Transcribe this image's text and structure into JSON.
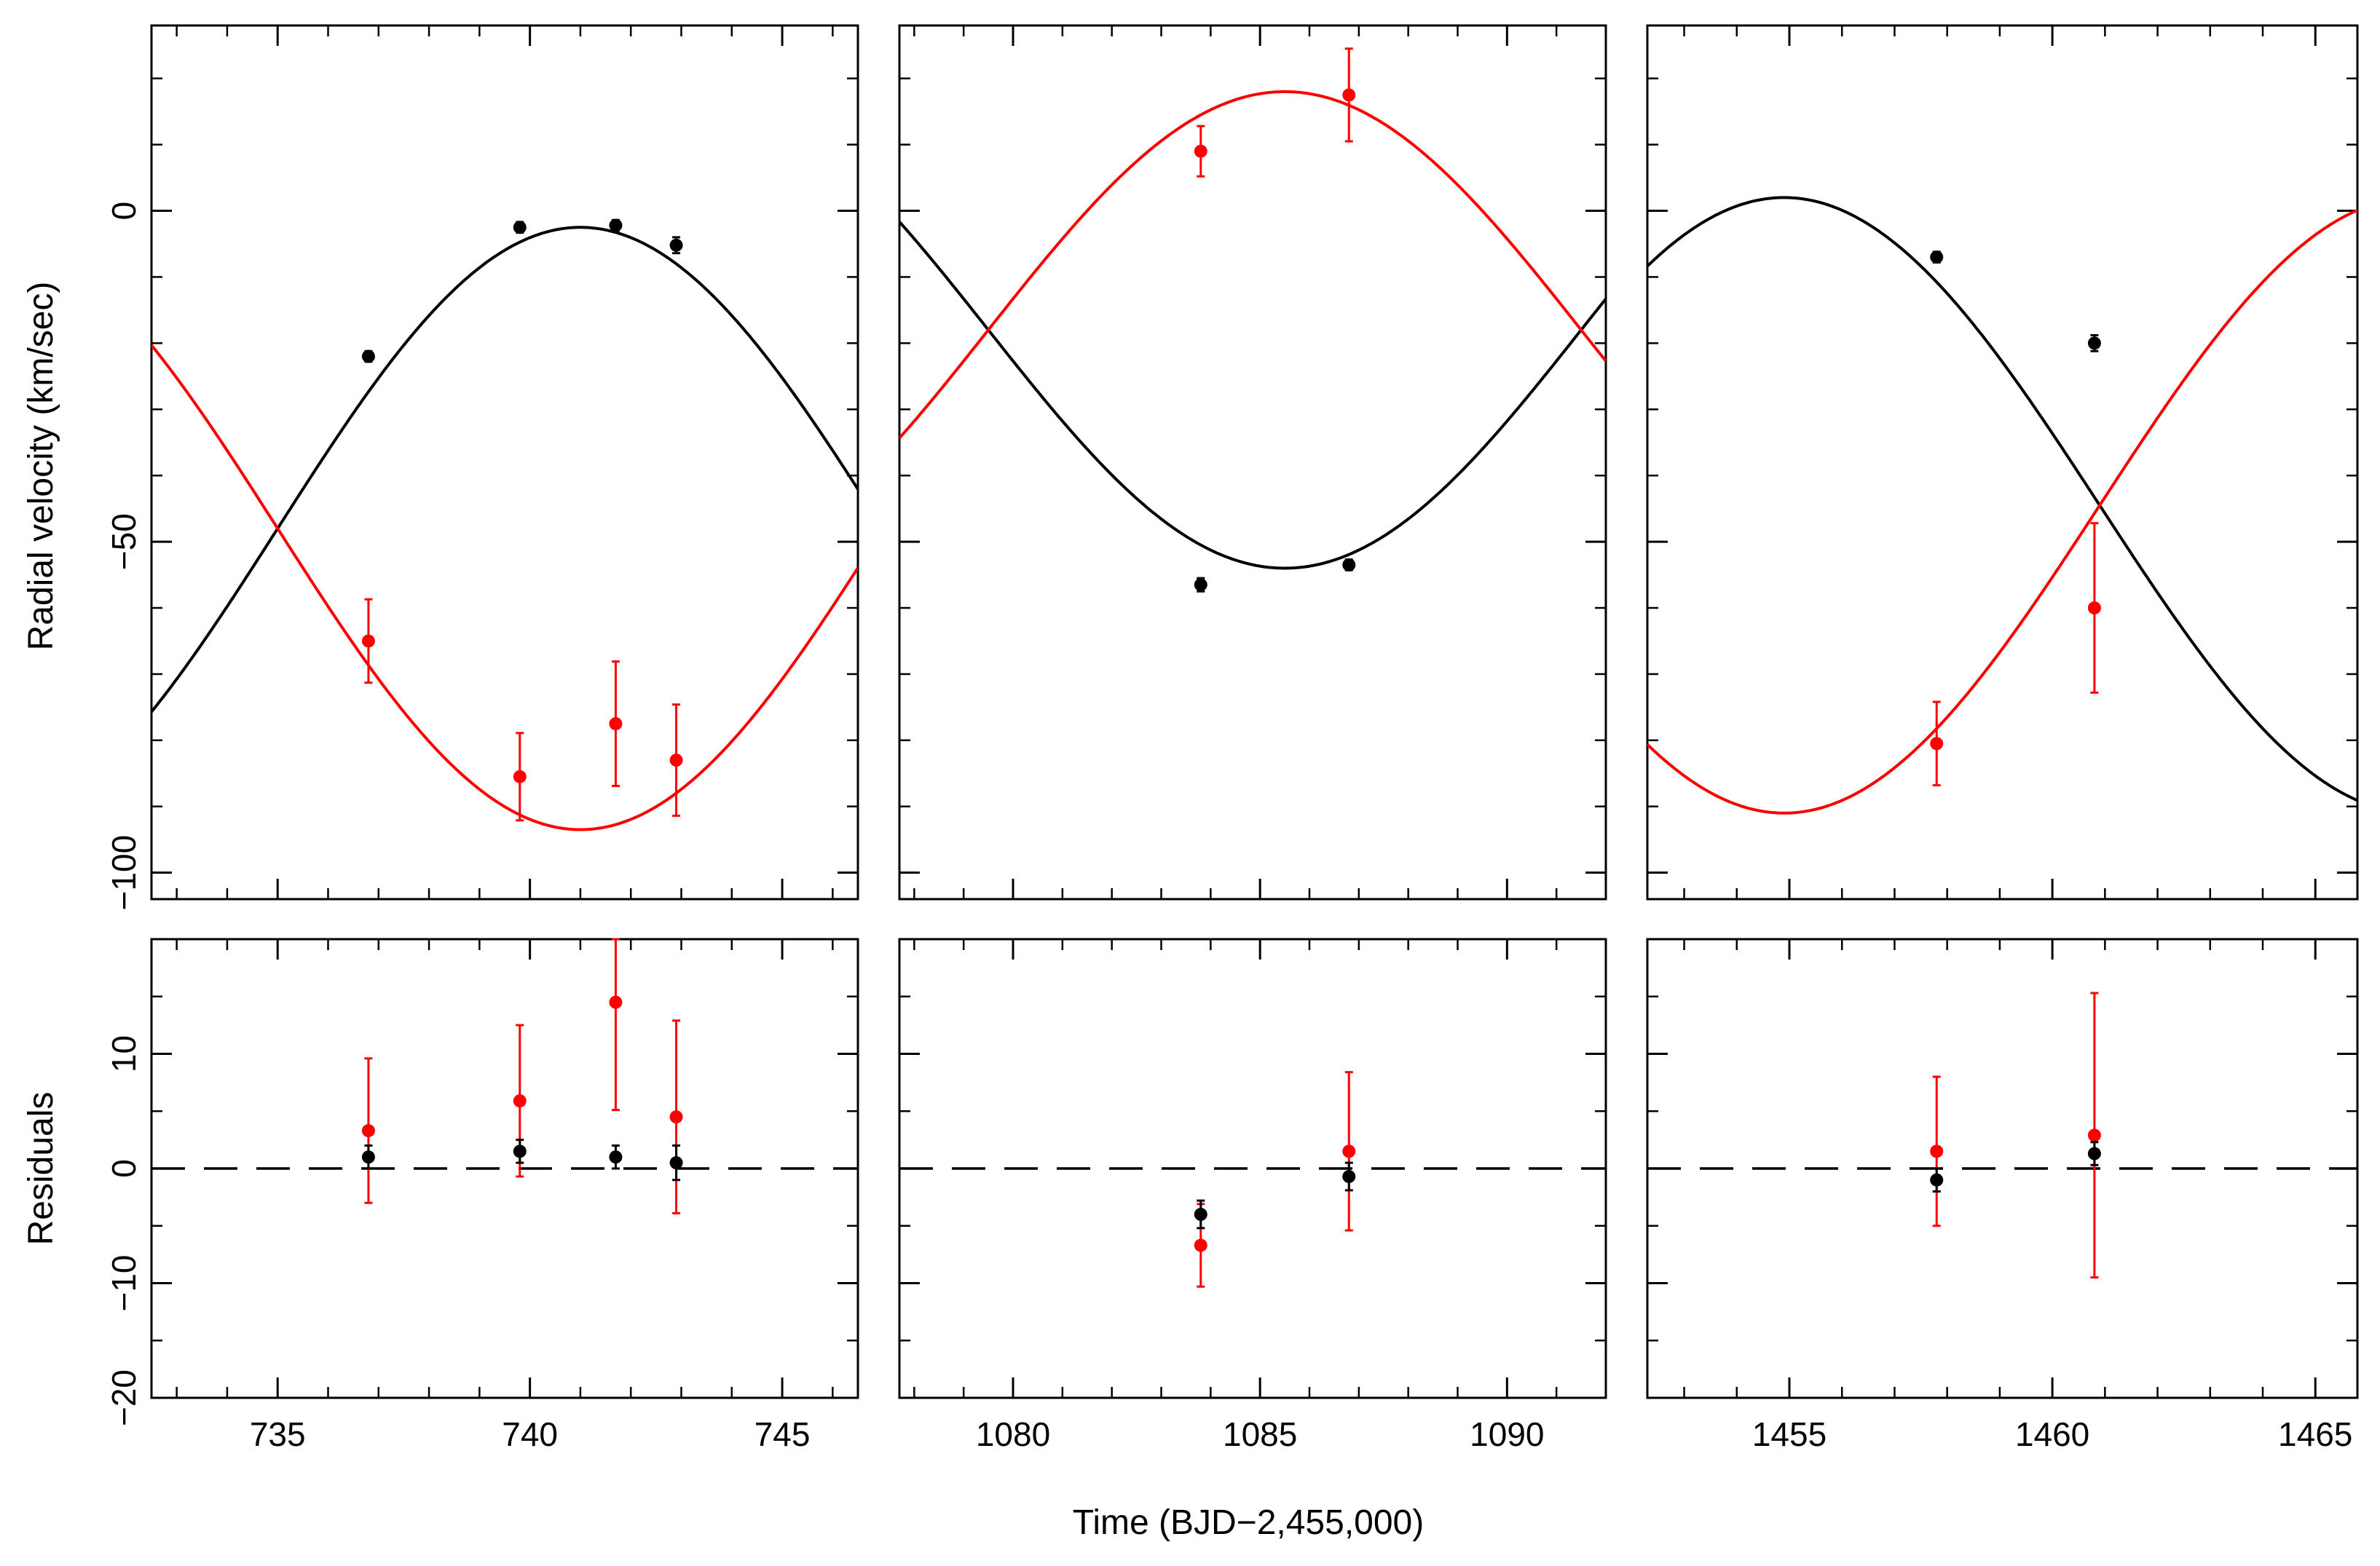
{
  "chart_data": {
    "type": "scatter",
    "description_title": "",
    "xlabel": "Time (BJD−2,455,000)",
    "top_ylabel": "Radial velocity (km/sec)",
    "bottom_ylabel": "Residuals",
    "top_ylim": [
      -104,
      28
    ],
    "bottom_ylim": [
      -20,
      20
    ],
    "top_yticks": [
      0,
      -50,
      -100
    ],
    "top_ytick_labels": [
      "0",
      "−50",
      "−100"
    ],
    "bottom_yticks": [
      10,
      0,
      -10,
      -20
    ],
    "bottom_ytick_labels": [
      "10",
      "0",
      "−10",
      "−20"
    ],
    "colors": {
      "primary": "#000000",
      "secondary": "#ff0000"
    },
    "panels": [
      {
        "name": "epoch-1",
        "xlim": [
          732.5,
          746.5
        ],
        "xticks": [
          735,
          740,
          745
        ],
        "xtick_labels": [
          "735",
          "740",
          "745"
        ],
        "orbit": {
          "period": 24.0,
          "tmax_primary": 741.0,
          "gamma": -48.0,
          "k_primary": 45.5,
          "k_secondary": 45.5
        },
        "series": [
          {
            "name": "primary",
            "color": "#000000",
            "rv": [
              {
                "x": 736.8,
                "y": -22.0,
                "err": 0.8
              },
              {
                "x": 739.8,
                "y": -2.5,
                "err": 0.8
              },
              {
                "x": 741.7,
                "y": -2.2,
                "err": 0.8
              },
              {
                "x": 742.9,
                "y": -5.2,
                "err": 1.2
              }
            ],
            "resid": [
              {
                "x": 736.8,
                "y": 1.0,
                "err": 1.0
              },
              {
                "x": 739.8,
                "y": 1.5,
                "err": 1.0
              },
              {
                "x": 741.7,
                "y": 1.0,
                "err": 1.0
              },
              {
                "x": 742.9,
                "y": 0.5,
                "err": 1.5
              }
            ]
          },
          {
            "name": "secondary",
            "color": "#ff0000",
            "rv": [
              {
                "x": 736.8,
                "y": -65.0,
                "err": 6.3
              },
              {
                "x": 739.8,
                "y": -85.5,
                "err": 6.6
              },
              {
                "x": 741.7,
                "y": -77.5,
                "err": 9.4
              },
              {
                "x": 742.9,
                "y": -83.0,
                "err": 8.4
              }
            ],
            "resid": [
              {
                "x": 736.8,
                "y": 3.3,
                "err": 6.3
              },
              {
                "x": 739.8,
                "y": 5.9,
                "err": 6.6
              },
              {
                "x": 741.7,
                "y": 14.5,
                "err": 9.4
              },
              {
                "x": 742.9,
                "y": 4.5,
                "err": 8.4
              }
            ]
          }
        ]
      },
      {
        "name": "epoch-2",
        "xlim": [
          1077.7,
          1092.0
        ],
        "xticks": [
          1080,
          1085,
          1090
        ],
        "xtick_labels": [
          "1080",
          "1085",
          "1090"
        ],
        "orbit": {
          "period": 24.0,
          "tmax_primary": 1097.5,
          "gamma": -18.0,
          "k_primary": 36.0,
          "k_secondary": 36.0
        },
        "series": [
          {
            "name": "primary",
            "color": "#000000",
            "rv": [
              {
                "x": 1083.8,
                "y": -56.5,
                "err": 1.0
              },
              {
                "x": 1086.8,
                "y": -53.5,
                "err": 0.8
              }
            ],
            "resid": [
              {
                "x": 1083.8,
                "y": -4.0,
                "err": 1.2
              },
              {
                "x": 1086.8,
                "y": -0.7,
                "err": 1.2
              }
            ]
          },
          {
            "name": "secondary",
            "color": "#ff0000",
            "rv": [
              {
                "x": 1083.8,
                "y": 9.0,
                "err": 3.8
              },
              {
                "x": 1086.8,
                "y": 17.5,
                "err": 7.0
              }
            ],
            "resid": [
              {
                "x": 1083.8,
                "y": -6.7,
                "err": 3.6
              },
              {
                "x": 1086.8,
                "y": 1.5,
                "err": 6.9
              }
            ]
          }
        ]
      },
      {
        "name": "epoch-3",
        "xlim": [
          1452.3,
          1465.8
        ],
        "xticks": [
          1455,
          1460,
          1465
        ],
        "xtick_labels": [
          "1455",
          "1460",
          "1465"
        ],
        "orbit": {
          "period": 24.0,
          "tmax_primary": 1454.9,
          "gamma": -44.5,
          "k_primary": 46.5,
          "k_secondary": 46.5
        },
        "series": [
          {
            "name": "primary",
            "color": "#000000",
            "rv": [
              {
                "x": 1457.8,
                "y": -7.0,
                "err": 0.8
              },
              {
                "x": 1460.8,
                "y": -20.0,
                "err": 1.2
              }
            ],
            "resid": [
              {
                "x": 1457.8,
                "y": -1.0,
                "err": 1.0
              },
              {
                "x": 1460.8,
                "y": 1.3,
                "err": 1.0
              }
            ]
          },
          {
            "name": "secondary",
            "color": "#ff0000",
            "rv": [
              {
                "x": 1457.8,
                "y": -80.5,
                "err": 6.3
              },
              {
                "x": 1460.8,
                "y": -60.0,
                "err": 12.8
              }
            ],
            "resid": [
              {
                "x": 1457.8,
                "y": 1.5,
                "err": 6.5
              },
              {
                "x": 1460.8,
                "y": 2.9,
                "err": 12.4
              }
            ]
          }
        ]
      }
    ]
  }
}
